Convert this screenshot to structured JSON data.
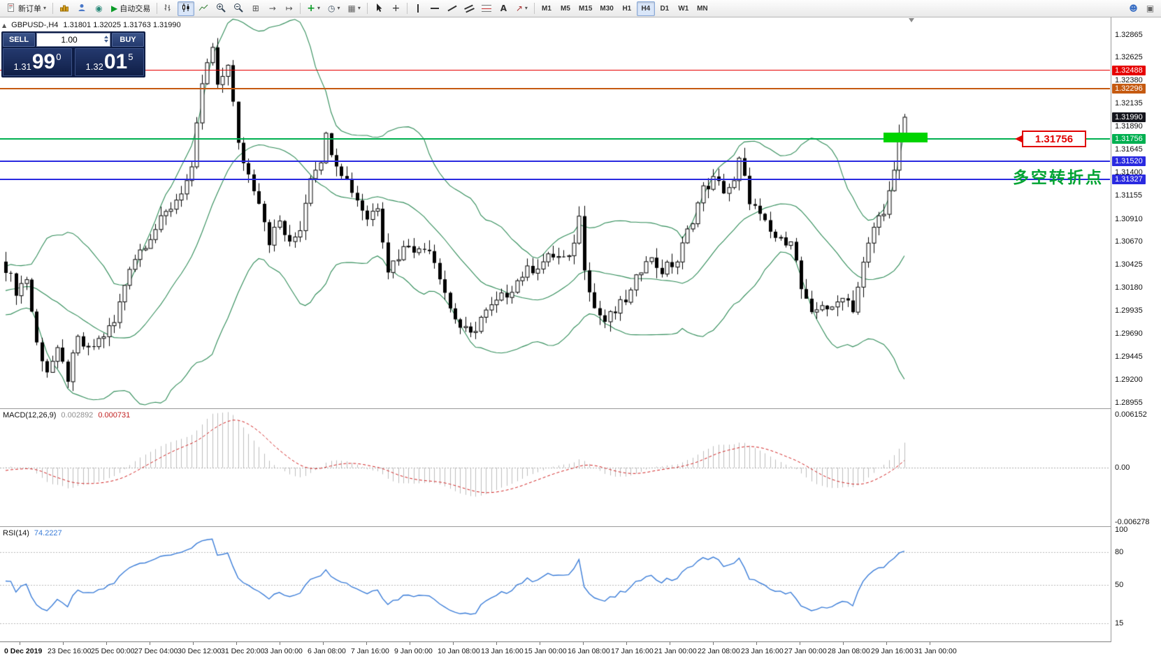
{
  "chart_title": {
    "symbol_period": "GBPUSD-,H4",
    "ohlc_text": "1.31801 1.32025 1.31763 1.31990"
  },
  "toolbar": {
    "new_order_label": "新订单",
    "autotrading_label": "自动交易",
    "timeframes": [
      "M1",
      "M5",
      "M15",
      "M30",
      "H1",
      "H4",
      "D1",
      "W1",
      "MN"
    ],
    "active_timeframe": "H4"
  },
  "icons": {
    "dropdown": "▾",
    "play": "▶",
    "market_watch": "◉",
    "tile_windows": "⊞",
    "auto_scroll": "→",
    "chart_shift": "↦",
    "indicators_plus": "+",
    "periods_clock": "◷",
    "templates_grid": "▦",
    "crosshair": "+",
    "text_tool": "A",
    "arrows_tool": "↗",
    "person": "☻",
    "layout": "▣",
    "collapse_toggle": "▲"
  },
  "one_click": {
    "sell_label": "SELL",
    "buy_label": "BUY",
    "volume": "1.00",
    "sell_price_small": "1.31",
    "sell_price_big": "99",
    "sell_price_sup": "0",
    "buy_price_small": "1.32",
    "buy_price_big": "01",
    "buy_price_sup": "5"
  },
  "price_axis": {
    "badges": [
      {
        "text": "1.32488",
        "price": 1.32488,
        "color": "#e60000",
        "line": true,
        "lw": 1,
        "name": "resistance-line-upper"
      },
      {
        "text": "1.32296",
        "price": 1.32296,
        "color": "#c55a11",
        "line": true,
        "lw": 2,
        "name": "resistance-line-lower"
      },
      {
        "text": "1.31990",
        "price": 1.3199,
        "color": "#15161d",
        "line": false,
        "lw": 0,
        "name": "current-price"
      },
      {
        "text": "1.31756",
        "price": 1.31756,
        "color": "#00b050",
        "line": true,
        "lw": 2,
        "name": "pivot-line"
      },
      {
        "text": "1.31520",
        "price": 1.3152,
        "color": "#2a2ae0",
        "line": true,
        "lw": 2,
        "name": "support-line-upper"
      },
      {
        "text": "1.31327",
        "price": 1.31327,
        "color": "#2a2ae0",
        "line": true,
        "lw": 2,
        "name": "support-line-lower"
      }
    ]
  },
  "macd_panel": {
    "title": "MACD(12,26,9)",
    "value": "0.002892",
    "signal_value": "0.000731"
  },
  "rsi_panel": {
    "title": "RSI(14)",
    "value": "74.2227"
  },
  "annotations": {
    "price_callout": "1.31756",
    "cn_note": "多空转折点",
    "highlight_box": {
      "price_top": 1.3183,
      "price_bottom": 1.3172
    }
  },
  "chart_data": {
    "type": "candlestick",
    "symbol": "GBPUSD-",
    "period": "H4",
    "visible_candles": 175,
    "last_candle": {
      "open": 1.31801,
      "high": 1.32025,
      "low": 1.31763,
      "close": 1.3199
    },
    "y_axis": {
      "labels": [
        "1.32865",
        "1.32625",
        "1.32380",
        "1.32135",
        "1.31890",
        "1.31645",
        "1.31400",
        "1.31155",
        "1.30910",
        "1.30670",
        "1.30425",
        "1.30180",
        "1.29935",
        "1.29690",
        "1.29445",
        "1.29200",
        "1.28955"
      ]
    },
    "x_axis_labels": [
      "0 Dec 2019",
      "23 Dec 16:00",
      "25 Dec 00:00",
      "27 Dec 04:00",
      "30 Dec 12:00",
      "31 Dec 20:00",
      "3 Jan 00:00",
      "6 Jan 08:00",
      "7 Jan 16:00",
      "9 Jan 00:00",
      "10 Jan 08:00",
      "13 Jan 16:00",
      "15 Jan 00:00",
      "16 Jan 08:00",
      "17 Jan 16:00",
      "21 Jan 00:00",
      "22 Jan 08:00",
      "23 Jan 16:00",
      "27 Jan 00:00",
      "28 Jan 08:00",
      "29 Jan 16:00",
      "31 Jan 00:00"
    ],
    "price_anchors": [
      [
        0,
        1.304
      ],
      [
        2,
        1.3015
      ],
      [
        4,
        1.3028
      ],
      [
        6,
        1.2958
      ],
      [
        8,
        1.293
      ],
      [
        10,
        1.2948
      ],
      [
        12,
        1.2922
      ],
      [
        14,
        1.2962
      ],
      [
        16,
        1.295
      ],
      [
        18,
        1.2962
      ],
      [
        21,
        1.298
      ],
      [
        24,
        1.3042
      ],
      [
        27,
        1.3066
      ],
      [
        30,
        1.3088
      ],
      [
        33,
        1.3112
      ],
      [
        36,
        1.314
      ],
      [
        38,
        1.3235
      ],
      [
        40,
        1.3272
      ],
      [
        41,
        1.3228
      ],
      [
        43,
        1.3258
      ],
      [
        45,
        1.3168
      ],
      [
        47,
        1.3138
      ],
      [
        49,
        1.3112
      ],
      [
        51,
        1.3068
      ],
      [
        53,
        1.3088
      ],
      [
        55,
        1.3062
      ],
      [
        57,
        1.3082
      ],
      [
        59,
        1.3138
      ],
      [
        61,
        1.3156
      ],
      [
        62,
        1.3178
      ],
      [
        64,
        1.3152
      ],
      [
        66,
        1.3132
      ],
      [
        68,
        1.3112
      ],
      [
        70,
        1.3092
      ],
      [
        72,
        1.3106
      ],
      [
        74,
        1.3038
      ],
      [
        76,
        1.3052
      ],
      [
        78,
        1.3066
      ],
      [
        80,
        1.3056
      ],
      [
        82,
        1.3062
      ],
      [
        84,
        1.3032
      ],
      [
        86,
        1.2996
      ],
      [
        88,
        1.2976
      ],
      [
        90,
        1.2966
      ],
      [
        92,
        1.2986
      ],
      [
        94,
        1.2996
      ],
      [
        97,
        1.3012
      ],
      [
        100,
        1.3032
      ],
      [
        103,
        1.3042
      ],
      [
        106,
        1.3052
      ],
      [
        109,
        1.3046
      ],
      [
        111,
        1.3092
      ],
      [
        112,
        1.3042
      ],
      [
        114,
        1.2996
      ],
      [
        116,
        1.2982
      ],
      [
        118,
        1.2992
      ],
      [
        121,
        1.3012
      ],
      [
        124,
        1.3052
      ],
      [
        127,
        1.3036
      ],
      [
        130,
        1.3046
      ],
      [
        133,
        1.3092
      ],
      [
        135,
        1.3122
      ],
      [
        137,
        1.3132
      ],
      [
        139,
        1.3122
      ],
      [
        141,
        1.3128
      ],
      [
        142,
        1.3152
      ],
      [
        144,
        1.3112
      ],
      [
        146,
        1.3092
      ],
      [
        148,
        1.3076
      ],
      [
        150,
        1.3066
      ],
      [
        152,
        1.3072
      ],
      [
        154,
        1.3016
      ],
      [
        156,
        1.2986
      ],
      [
        158,
        1.3002
      ],
      [
        160,
        1.2992
      ],
      [
        162,
        1.3012
      ],
      [
        164,
        1.2996
      ],
      [
        166,
        1.3042
      ],
      [
        168,
        1.3082
      ],
      [
        170,
        1.3102
      ],
      [
        171,
        1.3118
      ],
      [
        172,
        1.3138
      ],
      [
        173,
        1.3178
      ],
      [
        174,
        1.3199
      ]
    ],
    "indicators": [
      {
        "name": "Bollinger Bands",
        "period": 20,
        "deviation": 2,
        "color": "#2e8b57"
      },
      {
        "name": "MACD",
        "fast": 12,
        "slow": 26,
        "signal": 9,
        "current": "0.002892",
        "current_signal": "0.000731",
        "axis_labels": [
          "0.006152",
          "0.00",
          "-0.006278"
        ],
        "histogram_color": "#bdbdbd",
        "signal_color": "#d02020"
      },
      {
        "name": "RSI",
        "period": 14,
        "current": "74.2227",
        "axis_labels": [
          "100",
          "80",
          "50",
          "15"
        ],
        "levels": [
          80,
          50,
          15
        ],
        "color": "#3b7dd8"
      }
    ]
  }
}
